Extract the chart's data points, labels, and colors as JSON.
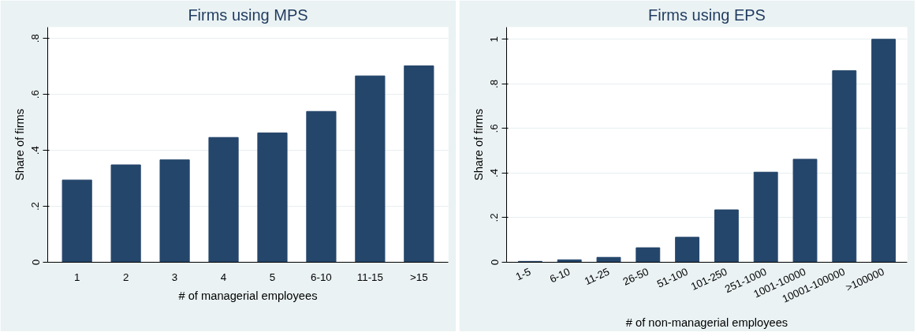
{
  "chart_data": [
    {
      "type": "bar",
      "title": "Firms using MPS",
      "xlabel": "# of managerial employees",
      "ylabel": "Share of firms",
      "categories": [
        "1",
        "2",
        "3",
        "4",
        "5",
        "6-10",
        "11-15",
        ">15"
      ],
      "values": [
        0.294,
        0.348,
        0.366,
        0.446,
        0.462,
        0.539,
        0.666,
        0.702
      ],
      "color": "#25466b",
      "ylim": [
        0,
        0.84
      ],
      "yticks": [
        {
          "value": 0,
          "label": "0"
        },
        {
          "value": 0.2,
          "label": ".2"
        },
        {
          "value": 0.4,
          "label": ".4"
        },
        {
          "value": 0.6,
          "label": ".6"
        },
        {
          "value": 0.8,
          "label": ".8"
        }
      ],
      "grid": "y"
    },
    {
      "type": "bar",
      "title": "Firms using EPS",
      "xlabel": "# of non-managerial employees",
      "ylabel": "Share of firms",
      "categories": [
        "1-5",
        "6-10",
        "11-25",
        "26-50",
        "51-100",
        "101-250",
        "251-1000",
        "1001-10000",
        "10001-100000",
        ">100000"
      ],
      "values": [
        0.004,
        0.011,
        0.022,
        0.065,
        0.112,
        0.235,
        0.404,
        0.462,
        0.859,
        1.0
      ],
      "color": "#25466b",
      "ylim": [
        0,
        1.054
      ],
      "yticks": [
        {
          "value": 0,
          "label": "0"
        },
        {
          "value": 0.2,
          "label": ".2"
        },
        {
          "value": 0.4,
          "label": ".4"
        },
        {
          "value": 0.6,
          "label": ".6"
        },
        {
          "value": 0.8,
          "label": ".8"
        },
        {
          "value": 1,
          "label": "1"
        }
      ],
      "grid": "y"
    }
  ]
}
